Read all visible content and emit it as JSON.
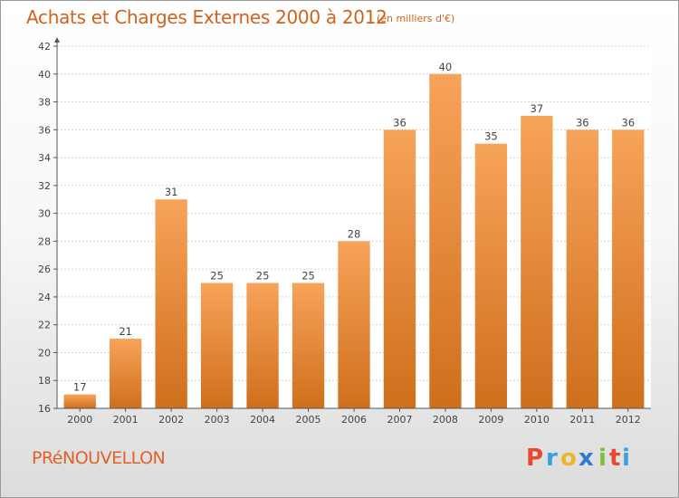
{
  "chart_data": {
    "type": "bar",
    "title": "Achats et Charges Externes 2000 à 2012",
    "unit": "(en milliers d'€)",
    "categories": [
      "2000",
      "2001",
      "2002",
      "2003",
      "2004",
      "2005",
      "2006",
      "2007",
      "2008",
      "2009",
      "2010",
      "2011",
      "2012"
    ],
    "values": [
      17,
      21,
      31,
      25,
      25,
      25,
      28,
      36,
      40,
      35,
      37,
      36,
      36
    ],
    "ylim": [
      16,
      42
    ],
    "yticks": [
      16,
      18,
      20,
      22,
      24,
      26,
      28,
      30,
      32,
      34,
      36,
      38,
      40,
      42
    ],
    "grid": true,
    "legend": "none",
    "colors": {
      "bar_top": "#f7a35a",
      "bar_bottom": "#cf6f1c",
      "grid": "#d4d4d4",
      "axis": "#555555"
    }
  },
  "commune": "PRéNOUVELLON",
  "brand": {
    "name": "Proxiti",
    "letters": [
      "P",
      "r",
      "o",
      "x",
      "i",
      "t",
      "i"
    ],
    "colors": [
      "#e8492e",
      "#3aa0dc",
      "#f0b429",
      "#2f7bd0",
      "#7bbf3a",
      "#e8492e",
      "#3aa0dc"
    ]
  }
}
